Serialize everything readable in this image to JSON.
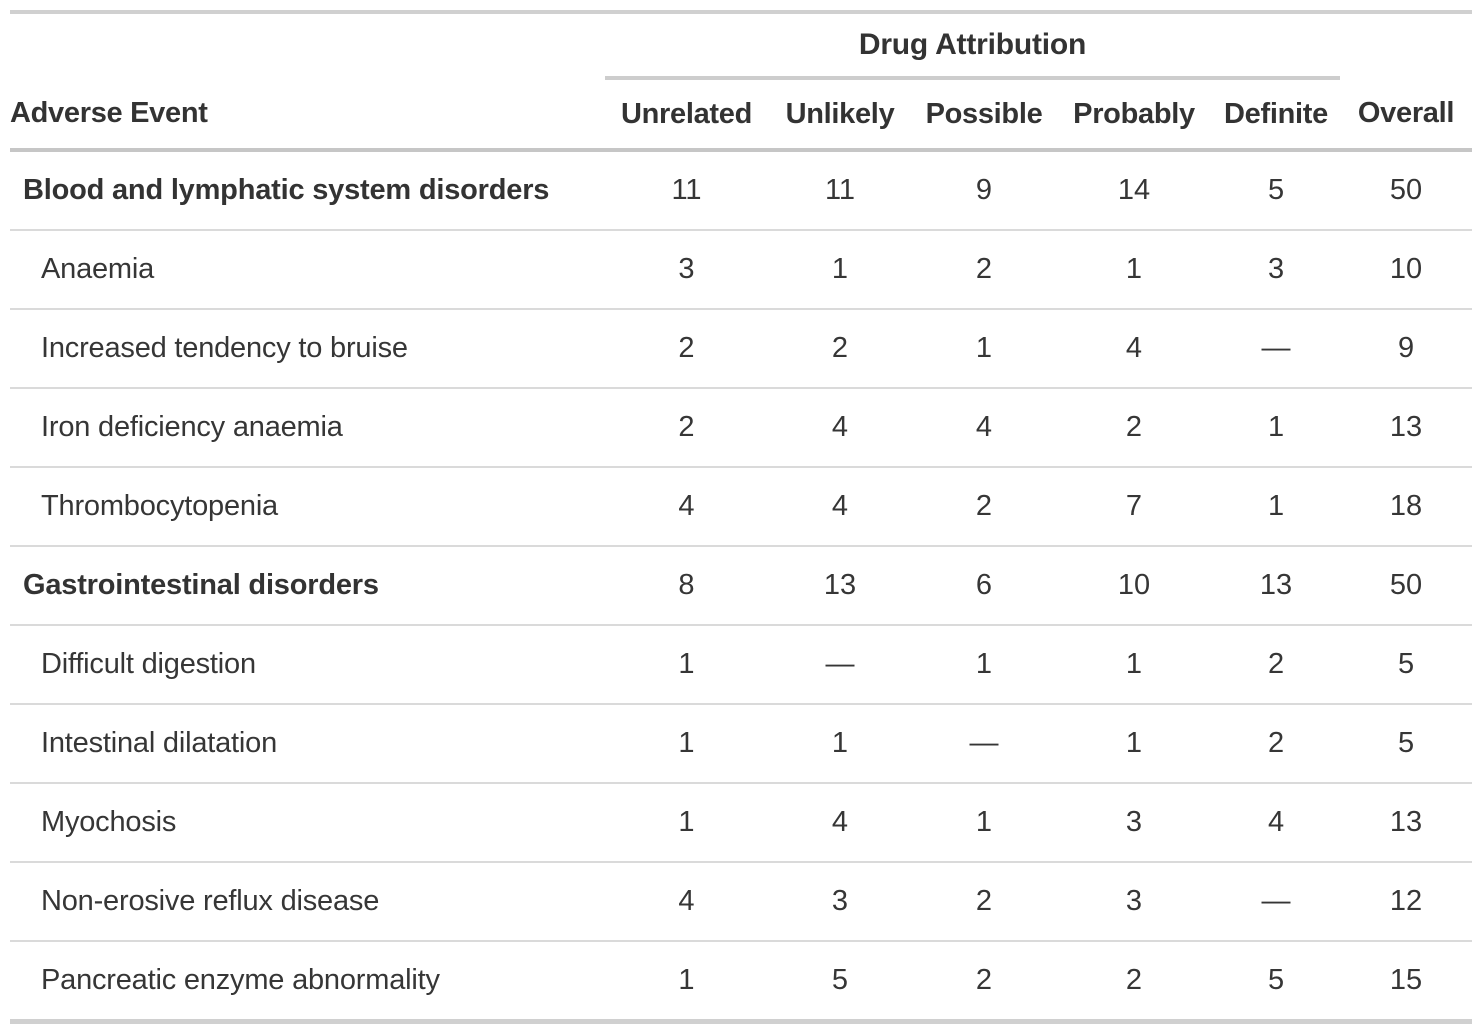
{
  "chart_data": {
    "type": "table",
    "spanner_label": "Drug Attribution",
    "columns": [
      "Adverse Event",
      "Unrelated",
      "Unlikely",
      "Possible",
      "Probably",
      "Definite",
      "Overall"
    ],
    "rows": [
      {
        "label": "Blood and lymphatic system disorders",
        "group": true,
        "values": [
          "11",
          "11",
          "9",
          "14",
          "5",
          "50"
        ]
      },
      {
        "label": "Anaemia",
        "group": false,
        "values": [
          "3",
          "1",
          "2",
          "1",
          "3",
          "10"
        ]
      },
      {
        "label": "Increased tendency to bruise",
        "group": false,
        "values": [
          "2",
          "2",
          "1",
          "4",
          "—",
          "9"
        ]
      },
      {
        "label": "Iron deficiency anaemia",
        "group": false,
        "values": [
          "2",
          "4",
          "4",
          "2",
          "1",
          "13"
        ]
      },
      {
        "label": "Thrombocytopenia",
        "group": false,
        "values": [
          "4",
          "4",
          "2",
          "7",
          "1",
          "18"
        ]
      },
      {
        "label": "Gastrointestinal disorders",
        "group": true,
        "values": [
          "8",
          "13",
          "6",
          "10",
          "13",
          "50"
        ]
      },
      {
        "label": "Difficult digestion",
        "group": false,
        "values": [
          "1",
          "—",
          "1",
          "1",
          "2",
          "5"
        ]
      },
      {
        "label": "Intestinal dilatation",
        "group": false,
        "values": [
          "1",
          "1",
          "—",
          "1",
          "2",
          "5"
        ]
      },
      {
        "label": "Myochosis",
        "group": false,
        "values": [
          "1",
          "4",
          "1",
          "3",
          "4",
          "13"
        ]
      },
      {
        "label": "Non-erosive reflux disease",
        "group": false,
        "values": [
          "4",
          "3",
          "2",
          "3",
          "—",
          "12"
        ]
      },
      {
        "label": "Pancreatic enzyme abnormality",
        "group": false,
        "values": [
          "1",
          "5",
          "2",
          "2",
          "5",
          "15"
        ]
      }
    ]
  },
  "colors": {
    "text": "#333333",
    "border_strong": "#d0d0d0",
    "border_header": "#c6c6c6",
    "border_row": "#dadada",
    "background": "#ffffff"
  }
}
